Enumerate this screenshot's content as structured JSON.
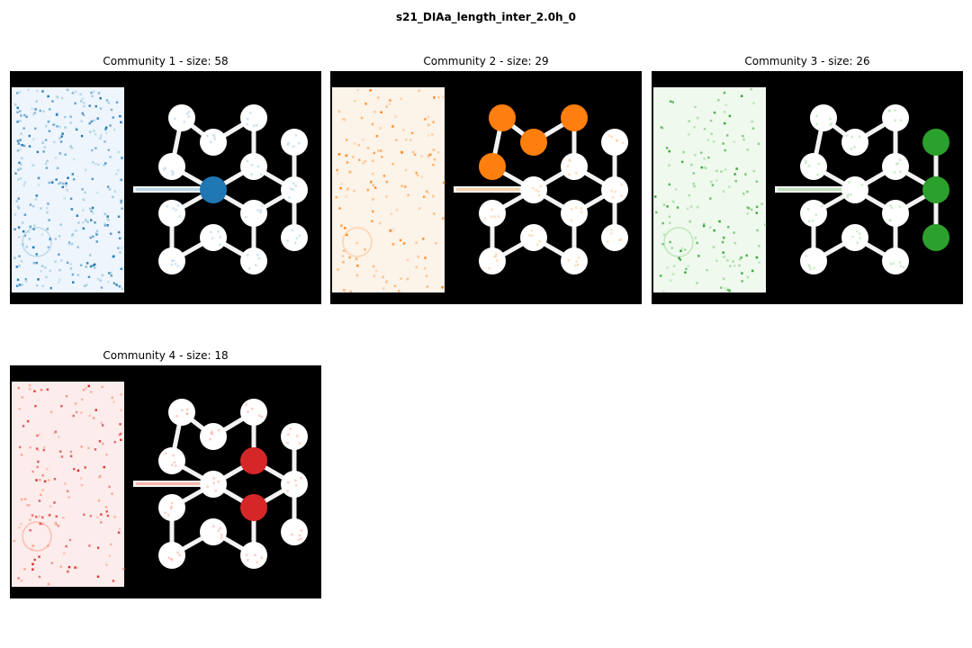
{
  "figure": {
    "title": "s21_DIAa_length_inter_2.0h_0"
  },
  "panels": [
    {
      "title": "Community 1 - size: 58",
      "cmap": "Blues",
      "colors": {
        "light": "#e3eef9",
        "mid": "#9ecae1",
        "dark": "#1f77b4"
      },
      "highlighted_nodes": [
        "center-left"
      ]
    },
    {
      "title": "Community 2 - size: 29",
      "cmap": "Oranges",
      "colors": {
        "light": "#fdebd7",
        "mid": "#fdbf86",
        "dark": "#ff7f0e"
      },
      "highlighted_nodes": [
        "top-left",
        "top-mid",
        "top-right",
        "upper-left"
      ]
    },
    {
      "title": "Community 3 - size: 26",
      "cmap": "Greens",
      "colors": {
        "light": "#e5f5e0",
        "mid": "#a1d99b",
        "dark": "#2ca02c"
      },
      "highlighted_nodes": [
        "right-top",
        "right-mid",
        "right-bottom"
      ]
    },
    {
      "title": "Community 4 - size: 18",
      "cmap": "Reds",
      "colors": {
        "light": "#fde0dc",
        "mid": "#fc9e8a",
        "dark": "#d62728"
      },
      "highlighted_nodes": [
        "hub-top",
        "hub-bottom"
      ]
    }
  ]
}
